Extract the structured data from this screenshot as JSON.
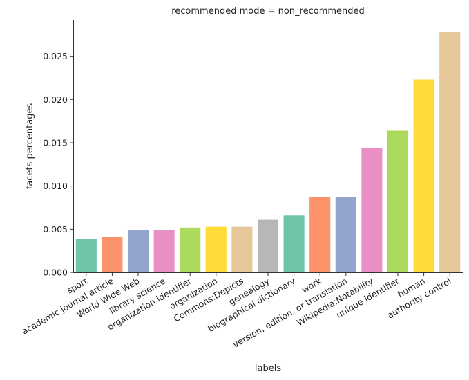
{
  "chart_data": {
    "type": "bar",
    "title": "recommended mode = non_recommended",
    "xlabel": "labels",
    "ylabel": "facets percentages",
    "categories": [
      "sport",
      "academic journal article",
      "World Wide Web",
      "library science",
      "organization identifier",
      "organization",
      "Commons:Depicts",
      "genealogy",
      "biographical dictionary",
      "work",
      "version, edition, or translation",
      "Wikipedia:Notability",
      "unique identifier",
      "human",
      "authority control"
    ],
    "values": [
      0.0039,
      0.0041,
      0.0049,
      0.0049,
      0.0052,
      0.0053,
      0.0053,
      0.0061,
      0.0066,
      0.0087,
      0.0087,
      0.0144,
      0.0164,
      0.0223,
      0.0278
    ],
    "colors": [
      "#66c2a5",
      "#fc8d62",
      "#8da0cb",
      "#e78ac3",
      "#a6d854",
      "#ffd92f",
      "#e5c494",
      "#b3b3b3",
      "#66c2a5",
      "#fc8d62",
      "#8da0cb",
      "#e78ac3",
      "#a6d854",
      "#ffd92f",
      "#e5c494"
    ],
    "bar_opacity": 0.95,
    "ylim": [
      0,
      0.0292
    ],
    "yticks": [
      0.0,
      0.005,
      0.01,
      0.015,
      0.02,
      0.025
    ],
    "ytick_labels": [
      "0.000",
      "0.005",
      "0.010",
      "0.015",
      "0.020",
      "0.025"
    ],
    "grid": false,
    "legend": "none"
  }
}
